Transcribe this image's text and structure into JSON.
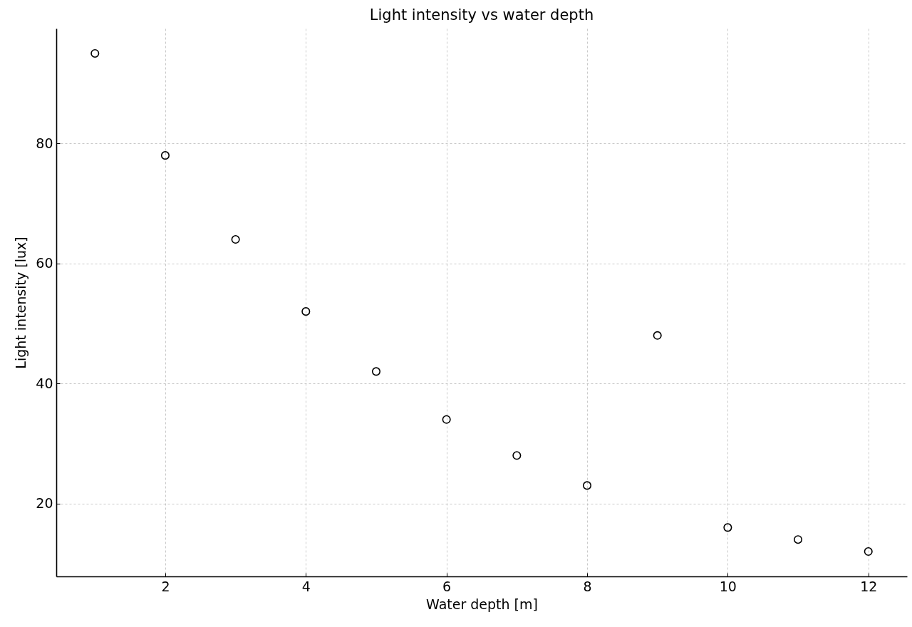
{
  "chart_data": {
    "type": "scatter",
    "title": "Light intensity vs water depth",
    "xlabel": "Water depth [m]",
    "ylabel": "Light intensity [lux]",
    "x": [
      1,
      2,
      3,
      4,
      5,
      6,
      7,
      8,
      9,
      10,
      11,
      12
    ],
    "series": [
      {
        "color": "#000000",
        "values": [
          95,
          78,
          64,
          52,
          42,
          34,
          28,
          23,
          48,
          16,
          14,
          12
        ]
      }
    ],
    "xlim": [
      0.45,
      12.55
    ],
    "xticks": [
      2,
      4,
      6,
      8,
      10,
      12
    ],
    "ylim": [
      7.85,
      99.15
    ],
    "yticks": [
      20,
      40,
      60,
      80
    ],
    "grid": true,
    "marker": "circle",
    "legend": false
  }
}
